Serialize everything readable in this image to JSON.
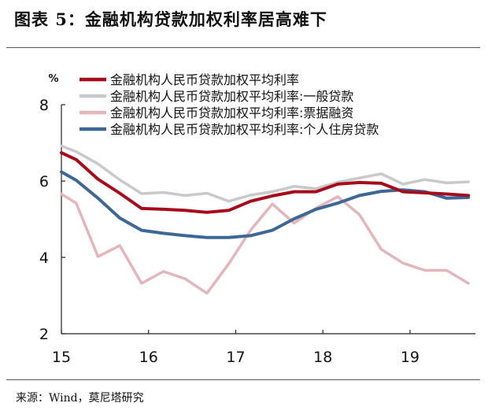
{
  "figure_title": "图表 5：金融机构贷款加权利率居高难下",
  "source_note": "来源：Wind，莫尼塔研究",
  "chart_data": {
    "type": "line",
    "y_unit_label": "%",
    "ylim": [
      2,
      8
    ],
    "yticks": [
      2,
      4,
      6,
      8
    ],
    "xlim": [
      15,
      19.75
    ],
    "xticks": [
      {
        "value": 15,
        "label": "15"
      },
      {
        "value": 16,
        "label": "16"
      },
      {
        "value": 17,
        "label": "17"
      },
      {
        "value": 18,
        "label": "18"
      },
      {
        "value": 19,
        "label": "19"
      }
    ],
    "legend_position": "top-left",
    "grid": false,
    "series": [
      {
        "name": "金融机构人民币贷款加权平均利率",
        "color": "#a50d1d",
        "width": 4,
        "points": [
          [
            15.0,
            6.74
          ],
          [
            15.17,
            6.56
          ],
          [
            15.42,
            6.05
          ],
          [
            15.67,
            5.68
          ],
          [
            15.92,
            5.28
          ],
          [
            16.17,
            5.26
          ],
          [
            16.42,
            5.23
          ],
          [
            16.67,
            5.18
          ],
          [
            16.92,
            5.23
          ],
          [
            17.17,
            5.47
          ],
          [
            17.42,
            5.61
          ],
          [
            17.67,
            5.72
          ],
          [
            17.92,
            5.72
          ],
          [
            18.17,
            5.92
          ],
          [
            18.42,
            5.96
          ],
          [
            18.67,
            5.94
          ],
          [
            18.92,
            5.72
          ],
          [
            19.17,
            5.69
          ],
          [
            19.42,
            5.66
          ],
          [
            19.67,
            5.62
          ]
        ]
      },
      {
        "name": "金融机构人民币贷款加权平均利率:一般贷款",
        "color": "#c9c9c9",
        "width": 3.5,
        "points": [
          [
            15.0,
            6.92
          ],
          [
            15.17,
            6.77
          ],
          [
            15.42,
            6.45
          ],
          [
            15.67,
            6.03
          ],
          [
            15.92,
            5.67
          ],
          [
            16.17,
            5.7
          ],
          [
            16.42,
            5.62
          ],
          [
            16.67,
            5.68
          ],
          [
            16.92,
            5.47
          ],
          [
            17.17,
            5.63
          ],
          [
            17.42,
            5.72
          ],
          [
            17.67,
            5.86
          ],
          [
            17.92,
            5.8
          ],
          [
            18.17,
            5.97
          ],
          [
            18.42,
            6.08
          ],
          [
            18.67,
            6.19
          ],
          [
            18.92,
            5.92
          ],
          [
            19.17,
            6.04
          ],
          [
            19.42,
            5.95
          ],
          [
            19.67,
            5.98
          ]
        ]
      },
      {
        "name": "金融机构人民币贷款加权平均利率:票据融资",
        "color": "#e2b6bc",
        "width": 3.5,
        "points": [
          [
            15.0,
            5.66
          ],
          [
            15.17,
            5.42
          ],
          [
            15.42,
            4.02
          ],
          [
            15.67,
            4.31
          ],
          [
            15.92,
            3.32
          ],
          [
            16.17,
            3.63
          ],
          [
            16.42,
            3.44
          ],
          [
            16.67,
            3.06
          ],
          [
            16.92,
            3.83
          ],
          [
            17.17,
            4.71
          ],
          [
            17.42,
            5.4
          ],
          [
            17.67,
            4.9
          ],
          [
            17.92,
            5.29
          ],
          [
            18.17,
            5.59
          ],
          [
            18.42,
            5.12
          ],
          [
            18.67,
            4.21
          ],
          [
            18.92,
            3.85
          ],
          [
            19.17,
            3.66
          ],
          [
            19.42,
            3.66
          ],
          [
            19.67,
            3.32
          ]
        ]
      },
      {
        "name": "金融机构人民币贷款加权平均利率:个人住房贷款",
        "color": "#3e6795",
        "width": 4,
        "points": [
          [
            15.0,
            6.24
          ],
          [
            15.17,
            6.02
          ],
          [
            15.42,
            5.55
          ],
          [
            15.67,
            5.03
          ],
          [
            15.92,
            4.71
          ],
          [
            16.17,
            4.63
          ],
          [
            16.42,
            4.57
          ],
          [
            16.67,
            4.52
          ],
          [
            16.92,
            4.52
          ],
          [
            17.17,
            4.57
          ],
          [
            17.42,
            4.71
          ],
          [
            17.67,
            5.01
          ],
          [
            17.92,
            5.26
          ],
          [
            18.17,
            5.42
          ],
          [
            18.42,
            5.62
          ],
          [
            18.67,
            5.73
          ],
          [
            18.92,
            5.77
          ],
          [
            19.17,
            5.72
          ],
          [
            19.42,
            5.55
          ],
          [
            19.67,
            5.57
          ]
        ]
      }
    ]
  }
}
